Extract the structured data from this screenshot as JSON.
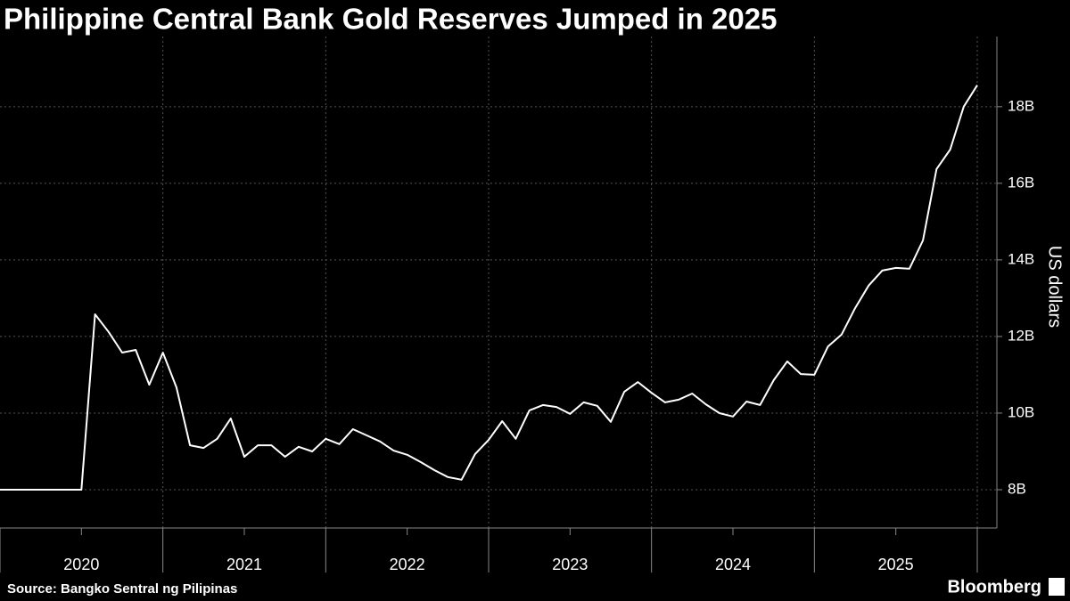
{
  "chart_data": {
    "type": "line",
    "title": "Philippine Central Bank Gold Reserves Jumped in 2025",
    "y_label": "US dollars",
    "source": "Source: Bangko Sentral ng Pilipinas",
    "brand": "Bloomberg",
    "categories": [
      null,
      null,
      null,
      null,
      null,
      null,
      "2020",
      null,
      null,
      null,
      null,
      null,
      null,
      null,
      null,
      null,
      null,
      null,
      "2021",
      null,
      null,
      null,
      null,
      null,
      null,
      null,
      null,
      null,
      null,
      null,
      "2022",
      null,
      null,
      null,
      null,
      null,
      null,
      null,
      null,
      null,
      null,
      null,
      "2023",
      null,
      null,
      null,
      null,
      null,
      null,
      null,
      null,
      null,
      null,
      null,
      "2024",
      null,
      null,
      null,
      null,
      null,
      null,
      null,
      null,
      null,
      null,
      null,
      "2025",
      null,
      null,
      null,
      null,
      null,
      null
    ],
    "series": [
      {
        "name": "Gold reserves",
        "color": "#ffffff",
        "values": [
          8.0,
          8.0,
          8.0,
          8.0,
          8.0,
          8.0,
          8.0,
          12.58,
          12.12,
          11.58,
          11.65,
          10.74,
          11.58,
          10.67,
          9.16,
          9.09,
          9.33,
          9.86,
          8.86,
          9.16,
          9.16,
          8.86,
          9.12,
          9.0,
          9.33,
          9.19,
          9.58,
          9.42,
          9.26,
          9.02,
          8.91,
          8.72,
          8.51,
          8.33,
          8.26,
          8.93,
          9.3,
          9.79,
          9.33,
          10.07,
          10.21,
          10.16,
          9.98,
          10.28,
          10.19,
          9.77,
          10.56,
          10.81,
          10.53,
          10.28,
          10.35,
          10.51,
          10.23,
          10.0,
          9.91,
          10.3,
          10.21,
          10.86,
          11.35,
          11.02,
          11.0,
          11.74,
          12.05,
          12.74,
          13.33,
          13.72,
          13.79,
          13.77,
          14.51,
          16.37,
          16.88,
          18.0,
          18.56
        ]
      }
    ],
    "ylim": [
      7,
      19.6
    ],
    "yticks": [
      {
        "value": 8,
        "label": "8B"
      },
      {
        "value": 10,
        "label": "10B"
      },
      {
        "value": 12,
        "label": "12B"
      },
      {
        "value": 14,
        "label": "14B"
      },
      {
        "value": 16,
        "label": "16B"
      },
      {
        "value": 18,
        "label": "18B"
      }
    ],
    "grid": true
  }
}
